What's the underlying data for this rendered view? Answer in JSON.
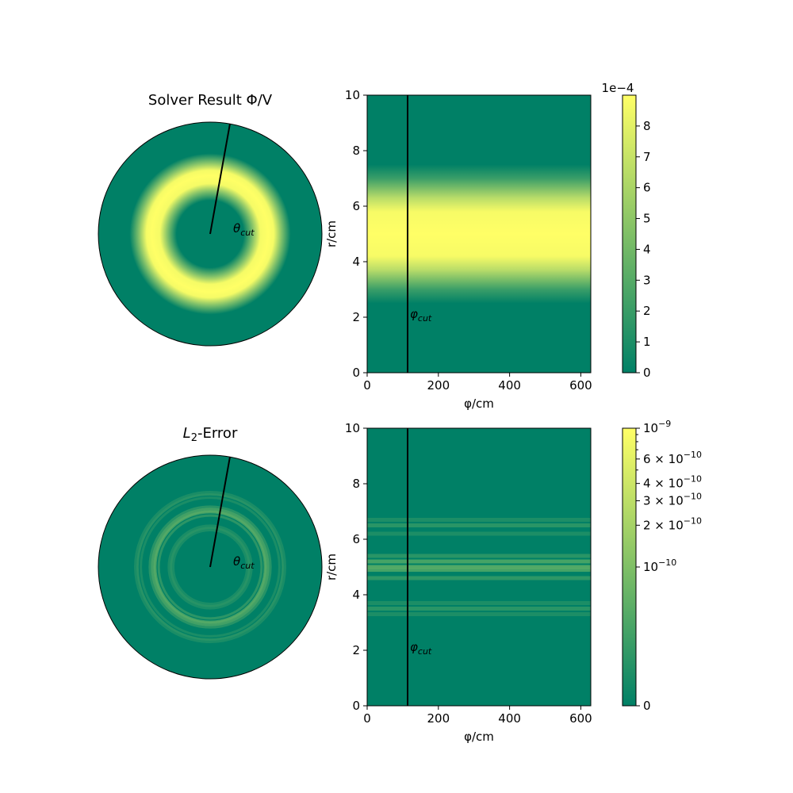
{
  "figure": {
    "top_title": "Solver Result Φ/V",
    "bottom_title_main": "L",
    "bottom_title_sub": "2",
    "bottom_title_rest": "-Error",
    "theta_label_main": "θ",
    "theta_label_sub": "cut",
    "phi_label_main": "φ",
    "phi_label_sub": "cut",
    "colormap": [
      "#008066",
      "#ffff66"
    ]
  },
  "chart_data": [
    {
      "type": "heatmap",
      "panel": "top-left-polar",
      "title": "Solver Result Φ/V",
      "description_values": {
        "ring_center_r": 5,
        "ring_width_r": 1.1,
        "r_max": 10,
        "peak_value": 0.0009
      },
      "cut_line_angle_deg": 79
    },
    {
      "type": "heatmap",
      "panel": "top-right-cartesian",
      "xlabel": "φ/cm",
      "ylabel": "r/cm",
      "xlim": [
        0,
        628
      ],
      "ylim": [
        0,
        10
      ],
      "xticks": [
        "0",
        "200",
        "400",
        "600"
      ],
      "xtick_values": [
        0,
        200,
        400,
        600
      ],
      "yticks": [
        "0",
        "2",
        "4",
        "6",
        "8",
        "10"
      ],
      "ytick_values": [
        0,
        2,
        4,
        6,
        8,
        10
      ],
      "phi_cut": 115,
      "profile_r": [
        0,
        1,
        2,
        3,
        3.5,
        4,
        4.5,
        5,
        5.5,
        6,
        6.5,
        7,
        8,
        9,
        10
      ],
      "profile_value": [
        0,
        0,
        1e-05,
        0.0002,
        0.00045,
        0.0008,
        0.00088,
        0.0009,
        0.00088,
        0.0008,
        0.00045,
        0.0002,
        1e-05,
        0,
        0
      ],
      "colorbar": {
        "scale": "linear",
        "range": [
          0,
          0.0009
        ],
        "offset_label": "1e−4",
        "ticks": [
          "0",
          "1",
          "2",
          "3",
          "4",
          "5",
          "6",
          "7",
          "8"
        ],
        "tick_values": [
          0,
          1,
          2,
          3,
          4,
          5,
          6,
          7,
          8
        ]
      }
    },
    {
      "type": "heatmap",
      "panel": "bottom-left-polar",
      "title": "L2-Error",
      "cut_line_angle_deg": 79
    },
    {
      "type": "heatmap",
      "panel": "bottom-right-cartesian",
      "xlabel": "φ/cm",
      "ylabel": "r/cm",
      "xlim": [
        0,
        628
      ],
      "ylim": [
        0,
        10
      ],
      "xticks": [
        "0",
        "200",
        "400",
        "600"
      ],
      "xtick_values": [
        0,
        200,
        400,
        600
      ],
      "yticks": [
        "0",
        "2",
        "4",
        "6",
        "8",
        "10"
      ],
      "ytick_values": [
        0,
        2,
        4,
        6,
        8,
        10
      ],
      "phi_cut": 115,
      "error_bands": [
        {
          "r": 3.3,
          "level": 0.12
        },
        {
          "r": 3.5,
          "level": 0.18
        },
        {
          "r": 3.7,
          "level": 0.12
        },
        {
          "r": 4.6,
          "level": 0.2
        },
        {
          "r": 4.9,
          "level": 0.3
        },
        {
          "r": 5.0,
          "level": 0.35
        },
        {
          "r": 5.2,
          "level": 0.3
        },
        {
          "r": 5.4,
          "level": 0.18
        },
        {
          "r": 6.2,
          "level": 0.12
        },
        {
          "r": 6.5,
          "level": 0.18
        },
        {
          "r": 6.7,
          "level": 0.12
        }
      ],
      "colorbar": {
        "scale": "symlog",
        "range": [
          0,
          1e-09
        ],
        "tick_labels": [
          {
            "base": "0",
            "exp": ""
          },
          {
            "base": "10",
            "exp": "−10",
            "pre": ""
          },
          {
            "base": "10",
            "exp": "−10",
            "pre": "2 × "
          },
          {
            "base": "10",
            "exp": "−10",
            "pre": "3 × "
          },
          {
            "base": "10",
            "exp": "−10",
            "pre": "4 × "
          },
          {
            "base": "10",
            "exp": "−10",
            "pre": "6 × "
          },
          {
            "base": "10",
            "exp": "−9",
            "pre": ""
          }
        ],
        "tick_values": [
          0,
          1e-10,
          2e-10,
          3e-10,
          4e-10,
          6e-10,
          1e-09
        ]
      }
    }
  ]
}
